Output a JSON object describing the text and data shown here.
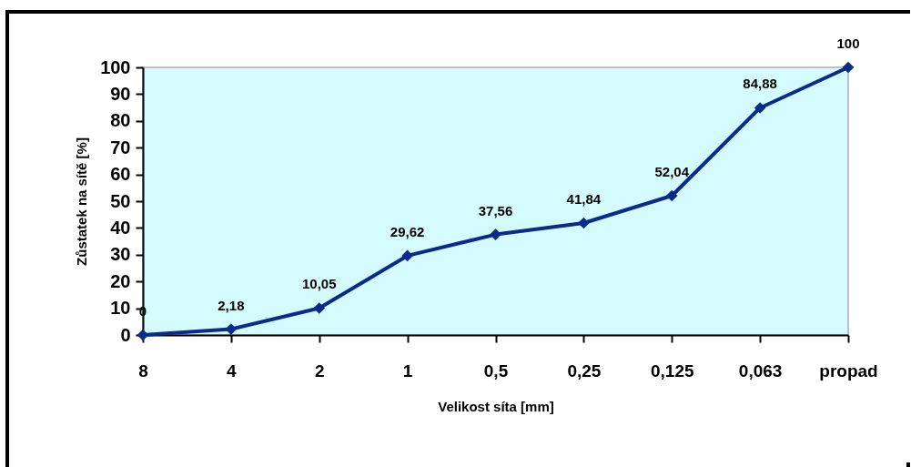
{
  "chart_data": {
    "type": "line",
    "xlabel": "Velikost síta [mm]",
    "ylabel": "Zůstatek na sítě [%]",
    "categories": [
      "8",
      "4",
      "2",
      "1",
      "0,5",
      "0,25",
      "0,125",
      "0,063",
      "propad"
    ],
    "series": [
      {
        "color": "#0a2a8c",
        "values": [
          0,
          2.18,
          10.05,
          29.62,
          37.56,
          41.84,
          52.04,
          84.88,
          100
        ],
        "value_labels": [
          "0",
          "2,18",
          "10,05",
          "29,62",
          "37,56",
          "41,84",
          "52,04",
          "84,88",
          "100"
        ]
      }
    ],
    "ylim": [
      0,
      100
    ],
    "yticks": [
      0,
      10,
      20,
      30,
      40,
      50,
      60,
      70,
      80,
      90,
      100
    ],
    "grid": false,
    "marker": "diamond",
    "line_style": "solid",
    "legend": false
  }
}
